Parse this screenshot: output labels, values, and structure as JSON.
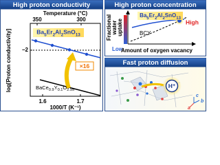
{
  "panels": [
    {
      "title": "High proton conductivity",
      "top_axis_label": "Temperature (°C)",
      "top_ticks": [
        350,
        300
      ],
      "y_axis_label": "log[Proton conductivity]",
      "y_ticks": [
        "−2"
      ],
      "x_axis_label": "1000/T (K⁻¹)",
      "x_ticks": [
        1.6,
        1.7
      ],
      "series_labels": [
        "Ba5Er2Al2SnO13",
        "BaCe0.9Y0.1O2.95"
      ],
      "annotation": "×16"
    },
    {
      "title": "High proton concentration",
      "y_axis_label": [
        "Fractional",
        "water",
        "uptake"
      ],
      "x_axis_label": "Amount of oxygen vacancy",
      "series_labels": [
        "Ba5Er2Al2SnO13",
        "BCY"
      ],
      "high_label": "High",
      "low_label": "Low"
    },
    {
      "title": "Fast proton diffusion",
      "ion_label": "H⁺",
      "axes_labels": [
        "a",
        "b",
        "c"
      ]
    }
  ]
}
